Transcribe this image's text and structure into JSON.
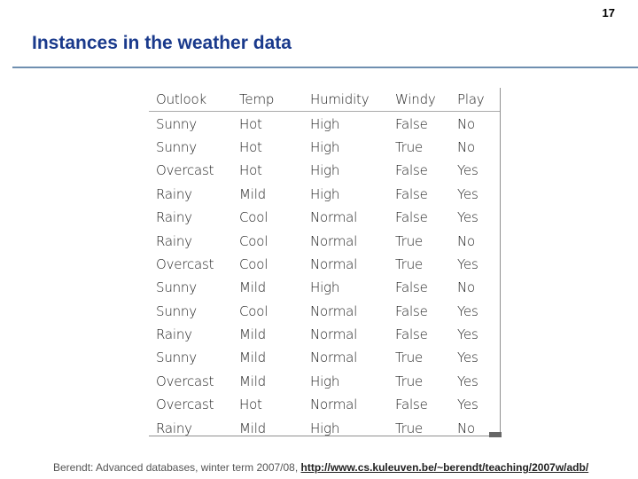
{
  "page_number": "17",
  "title": "Instances in the weather data",
  "table": {
    "headers": [
      "Outlook",
      "Temp",
      "Humidity",
      "Windy",
      "Play"
    ],
    "rows": [
      [
        "Sunny",
        "Hot",
        "High",
        "False",
        "No"
      ],
      [
        "Sunny",
        "Hot",
        "High",
        "True",
        "No"
      ],
      [
        "Overcast",
        "Hot",
        "High",
        "False",
        "Yes"
      ],
      [
        "Rainy",
        "Mild",
        "High",
        "False",
        "Yes"
      ],
      [
        "Rainy",
        "Cool",
        "Normal",
        "False",
        "Yes"
      ],
      [
        "Rainy",
        "Cool",
        "Normal",
        "True",
        "No"
      ],
      [
        "Overcast",
        "Cool",
        "Normal",
        "True",
        "Yes"
      ],
      [
        "Sunny",
        "Mild",
        "High",
        "False",
        "No"
      ],
      [
        "Sunny",
        "Cool",
        "Normal",
        "False",
        "Yes"
      ],
      [
        "Rainy",
        "Mild",
        "Normal",
        "False",
        "Yes"
      ],
      [
        "Sunny",
        "Mild",
        "Normal",
        "True",
        "Yes"
      ],
      [
        "Overcast",
        "Mild",
        "High",
        "True",
        "Yes"
      ],
      [
        "Overcast",
        "Hot",
        "Normal",
        "False",
        "Yes"
      ],
      [
        "Rainy",
        "Mild",
        "High",
        "True",
        "No"
      ]
    ]
  },
  "footer": {
    "text": "Berendt: Advanced databases, winter term 2007/08, ",
    "link": "http://www.cs.kuleuven.be/~berendt/teaching/2007w/adb/"
  },
  "colors": {
    "title": "#1a3a8c",
    "rule": "#6f8fb0"
  }
}
